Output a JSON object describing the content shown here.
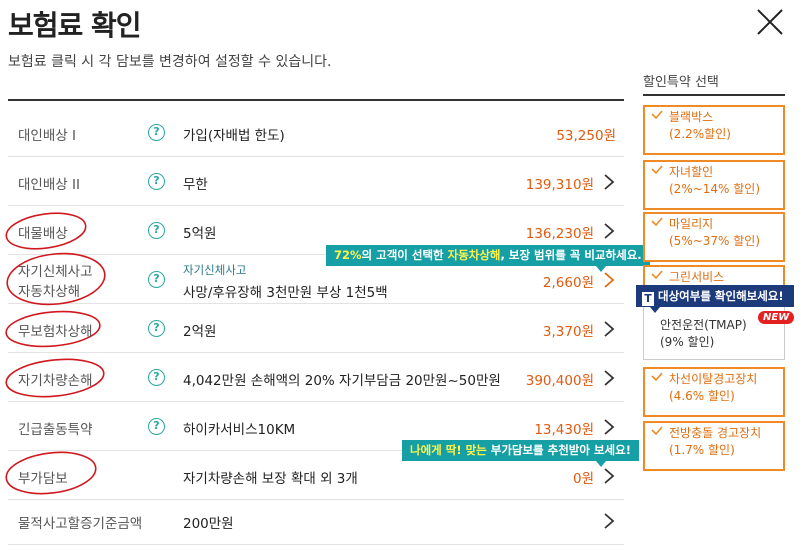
{
  "header": {
    "title": "보험료 확인",
    "subtitle": "보험료 클릭 시 각 담보를 변경하여 설정할 수 있습니다."
  },
  "rows": [
    {
      "label": "대인배상 Ⅰ",
      "desc": "가입(자배법 한도)",
      "amount": "53,250원"
    },
    {
      "label": "대인배상 II",
      "desc": "무한",
      "amount": "139,310원"
    },
    {
      "label": "대물배상",
      "desc": "5억원",
      "amount": "136,230원"
    },
    {
      "label_line1": "자기신체사고",
      "label_line2": "자동차상해",
      "desc_sub": "자기신체사고",
      "desc": "사망/후유장해 3천만원 부상 1천5백",
      "amount": "2,660원"
    },
    {
      "label": "무보험차상해",
      "desc": "2억원",
      "amount": "3,370원"
    },
    {
      "label": "자기차량손해",
      "desc": "4,042만원 손해액의 20% 자기부담금 20만원~50만원",
      "amount": "390,400원"
    },
    {
      "label": "긴급출동특약",
      "desc": "하이카서비스10KM",
      "amount": "13,430원"
    },
    {
      "label": "부가담보",
      "desc": "자기차량손해 보장 확대 외 3개",
      "amount": "0원"
    },
    {
      "label": "물적사고할증기준금액",
      "desc": "200만원",
      "amount": ""
    }
  ],
  "tooltips": {
    "self_injury": {
      "pct": "72%",
      "text1": "의 고객이 선택한 ",
      "highlight": "자동차상해",
      "text2": ", 보장 범위를 꼭 비교하세요."
    },
    "extra": {
      "highlight": "나에게 딱! 맞는",
      "text": " 부가담보를 추천받아 보세요!"
    },
    "tmap": {
      "logo": "T",
      "text": "대상여부를 확인해보세요!"
    }
  },
  "sidebar": {
    "title": "할인특약 선택",
    "items": [
      {
        "name": "블랙박스",
        "rate": "(2.2%할인)"
      },
      {
        "name": "자녀할인",
        "rate": "(2%~14% 할인)"
      },
      {
        "name": "마일리지",
        "rate": "(5%~37% 할인)"
      },
      {
        "name": "그린서비스",
        "rate": ""
      },
      {
        "name": "안전운전(TMAP)",
        "rate": "(9% 할인)",
        "badge": "NEW"
      },
      {
        "name": "차선이탈경고장치",
        "rate": "(4.6% 할인)"
      },
      {
        "name": "전방충돌 경고장치",
        "rate": "(1.7% 할인)"
      }
    ]
  },
  "colors": {
    "accent_orange": "#f08a24",
    "amount_orange": "#e05a10",
    "tooltip_teal": "#16a0a5",
    "tooltip_navy": "#1d3a7a",
    "annotation_red": "#d0181f"
  },
  "icons": {
    "close": "close-icon",
    "help": "question-icon",
    "chevron": "chevron-right-icon",
    "check": "check-icon"
  }
}
